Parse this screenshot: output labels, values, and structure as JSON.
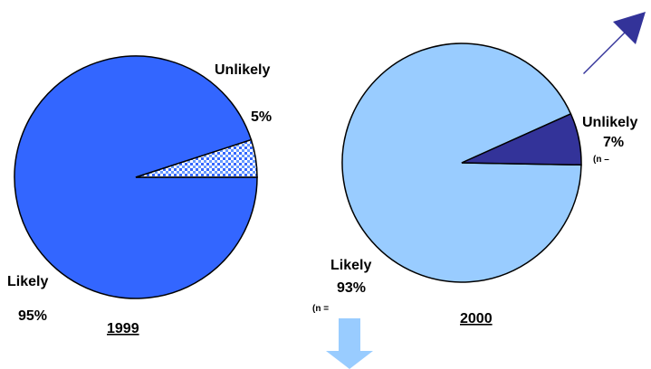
{
  "colors": {
    "likely_1999": "#3366ff",
    "unlikely_1999_fill": "#ffffff",
    "unlikely_1999_pattern": "#3366ff",
    "likely_2000": "#99ccff",
    "unlikely_2000": "#333399",
    "arrow_up": "#333399",
    "arrow_down": "#99ccff",
    "outline": "#000000"
  },
  "chart_data": [
    {
      "type": "pie",
      "title": "1999",
      "slices": [
        {
          "label": "Likely",
          "value": 95,
          "value_label": "95%"
        },
        {
          "label": "Unlikely",
          "value": 5,
          "value_label": "5%"
        }
      ]
    },
    {
      "type": "pie",
      "title": "2000",
      "slices": [
        {
          "label": "Likely",
          "value": 93,
          "value_label": "93%",
          "note": "(n ="
        },
        {
          "label": "Unlikely",
          "value": 7,
          "value_label": "7%",
          "note": "(n –"
        }
      ]
    }
  ],
  "arrows": [
    {
      "icon": "arrow-up-right-icon",
      "direction": "up-right"
    },
    {
      "icon": "arrow-down-icon",
      "direction": "down"
    }
  ]
}
